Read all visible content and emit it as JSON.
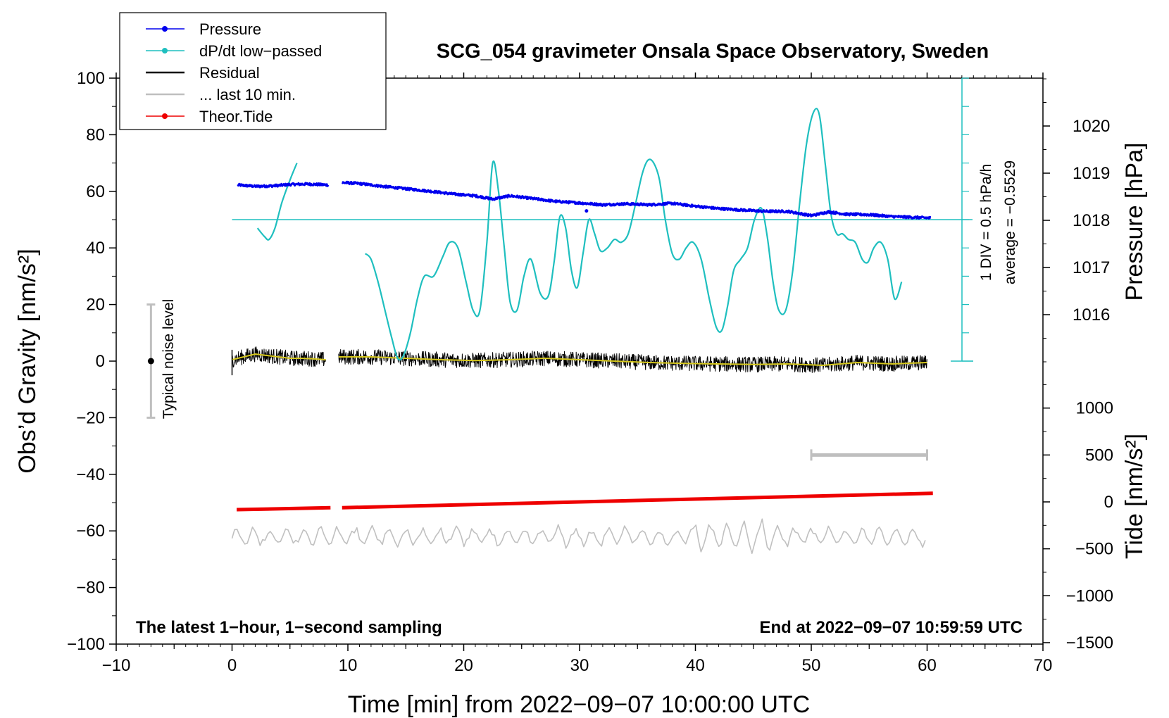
{
  "chart_data": {
    "type": "line",
    "title": "SCG_054 gravimeter Onsala Space Observatory, Sweden",
    "xlabel": "Time [min] from 2022−09−07 10:00:00 UTC",
    "ylabel": "Obs’d Gravity [nm/s²]",
    "ylabel_right_top": "Pressure [hPa]",
    "ylabel_right_bottom": "Tide [nm/s²]",
    "xlim": [
      -10,
      70
    ],
    "ylim": [
      -100,
      100
    ],
    "x_ticks": [
      -10,
      0,
      10,
      20,
      30,
      40,
      50,
      60,
      70
    ],
    "x_tick_labels": [
      "−10",
      "0",
      "10",
      "20",
      "30",
      "40",
      "50",
      "60",
      "70"
    ],
    "y_ticks": [
      -100,
      -80,
      -60,
      -40,
      -20,
      0,
      20,
      40,
      60,
      80,
      100
    ],
    "y_tick_labels": [
      "−100",
      "−80",
      "−60",
      "−40",
      "−20",
      "0",
      "20",
      "40",
      "60",
      "80",
      "100"
    ],
    "pressure_axis": {
      "range_hpa": [
        1015,
        1021
      ],
      "ticks": [
        1016,
        1017,
        1018,
        1019,
        1020
      ],
      "tick_labels": [
        "1016",
        "1017",
        "1018",
        "1019",
        "1020"
      ]
    },
    "tide_axis": {
      "range": [
        -1500,
        1500
      ],
      "ticks": [
        -1500,
        -1000,
        -500,
        0,
        500,
        1000
      ],
      "tick_labels": [
        "−1500",
        "−1000",
        "−500",
        "0",
        "500",
        "1000"
      ]
    },
    "legend": [
      {
        "label": "Pressure",
        "color": "#0000ee",
        "marker": true
      },
      {
        "label": "dP/dt low−passed",
        "color": "#1fbfbf",
        "marker": true
      },
      {
        "label": "Residual",
        "color": "#000000",
        "marker": false
      },
      {
        "label": "... last 10 min.",
        "color": "#bfbfbf",
        "marker": false
      },
      {
        "label": "Theor.Tide",
        "color": "#ee0000",
        "marker": true
      }
    ],
    "series": [
      {
        "name": "Pressure",
        "unit": "hPa",
        "color": "#0000ee",
        "segments": [
          {
            "x": [
              0.5,
              2,
              3.5,
              5,
              6.5,
              8.3
            ],
            "y": [
              1018.75,
              1018.72,
              1018.73,
              1018.76,
              1018.77,
              1018.75
            ]
          },
          {
            "x": [
              9.5,
              11,
              13,
              15,
              17,
              19,
              21,
              22.5,
              24,
              26,
              28,
              30,
              32,
              34,
              36,
              38,
              40,
              42,
              44,
              46,
              48,
              50,
              51.5,
              53,
              55,
              57,
              60.3
            ],
            "y": [
              1018.8,
              1018.78,
              1018.72,
              1018.67,
              1018.62,
              1018.56,
              1018.52,
              1018.45,
              1018.52,
              1018.46,
              1018.4,
              1018.37,
              1018.33,
              1018.35,
              1018.33,
              1018.36,
              1018.3,
              1018.25,
              1018.22,
              1018.19,
              1018.19,
              1018.1,
              1018.18,
              1018.13,
              1018.12,
              1018.08,
              1018.05
            ]
          }
        ]
      },
      {
        "name": "dP/dt low−passed",
        "unit": "gravity-axis units",
        "color": "#1fbfbf",
        "baseline": 50,
        "segments": [
          {
            "x": [
              2.2,
              2.8,
              3.2,
              3.7,
              4.3,
              5.0,
              5.6
            ],
            "y": [
              47,
              44,
              43,
              47,
              56,
              64,
              70
            ]
          },
          {
            "x": [
              11.5,
              12.0,
              12.6,
              13.2,
              13.8,
              14.3,
              14.8,
              15.4,
              16.0,
              16.6,
              17.4,
              18.2,
              18.8,
              19.5,
              20.2,
              20.8,
              21.4,
              22.0,
              22.5,
              23.0,
              23.5,
              24.0,
              24.6,
              25.2,
              25.8,
              26.6,
              27.3,
              27.8,
              28.3,
              28.8,
              29.3,
              29.8,
              30.3,
              30.8,
              31.3,
              31.8,
              32.4,
              33.0,
              33.6,
              34.2,
              34.8,
              35.4,
              35.9,
              36.4,
              36.9,
              37.4,
              38.0,
              38.6,
              39.2,
              39.8,
              40.5,
              41.2,
              41.8,
              42.3,
              42.8,
              43.3,
              43.9,
              44.5,
              45.1,
              45.7,
              46.2,
              46.7,
              47.2,
              47.8,
              48.4,
              49.0,
              49.6,
              50.2,
              50.7,
              51.2,
              51.7,
              52.2,
              52.7,
              53.2,
              53.8,
              54.4,
              54.9,
              55.4,
              56.0,
              56.6,
              57.2,
              57.8
            ],
            "y": [
              38,
              36,
              28,
              18,
              8,
              1,
              2,
              10,
              22,
              30,
              30,
              37,
              42,
              40,
              28,
              18,
              18,
              42,
              70,
              60,
              40,
              21,
              18,
              30,
              36,
              24,
              23,
              35,
              51,
              47,
              32,
              26,
              38,
              50,
              45,
              39,
              40,
              43,
              42,
              45,
              55,
              66,
              71,
              70,
              64,
              50,
              38,
              36,
              40,
              42,
              36,
              22,
              12,
              11,
              20,
              32,
              36,
              40,
              50,
              54,
              44,
              28,
              18,
              18,
              32,
              56,
              77,
              88,
              87,
              70,
              52,
              45,
              45,
              43,
              42,
              36,
              35,
              40,
              42,
              36,
              22,
              28
            ]
          }
        ]
      },
      {
        "name": "Residual",
        "unit": "nm/s²",
        "color": "#000000",
        "smoothed_color": "#d6c81c",
        "segments": [
          {
            "x": [
              0,
              1,
              2,
              3,
              4,
              5,
              6,
              7,
              8.1
            ],
            "y": [
              0.5,
              1.5,
              2.5,
              2.0,
              1.5,
              1.0,
              1.0,
              0.8,
              0.5
            ]
          },
          {
            "x": [
              9.2,
              12,
              15,
              18,
              21,
              24,
              27,
              30,
              33,
              36,
              39,
              42,
              45,
              48,
              51,
              54,
              57,
              60
            ],
            "y": [
              1.5,
              1.5,
              1.0,
              0.5,
              0.2,
              0.5,
              1.0,
              0.5,
              0.0,
              -0.5,
              -0.8,
              -1.0,
              -1.2,
              -1.0,
              -1.5,
              -0.5,
              -1.0,
              -0.5
            ]
          }
        ]
      },
      {
        "name": "... last 10 min.",
        "color": "#bfbfbf",
        "x": [
          50,
          60
        ],
        "tide_axis_y": 500
      },
      {
        "name": "Theor.Tide",
        "unit": "nm/s²",
        "color": "#ee0000",
        "segments": [
          {
            "x": [
              0.4,
              8.5
            ],
            "y": [
              -52.5,
              -51.8
            ]
          },
          {
            "x": [
              9.5,
              60.5
            ],
            "y": [
              -51.8,
              -46.7
            ]
          }
        ]
      },
      {
        "name": "Residual (offset copy)",
        "color": "#c0c0c0",
        "offset": -62,
        "x": [
          0,
          60
        ]
      }
    ],
    "noise_bar": {
      "x": -7,
      "y_range": [
        -20,
        20
      ],
      "center": 0,
      "label": "Typical noise level"
    },
    "annotations": {
      "bottom_left": "The latest 1−hour, 1−second sampling",
      "bottom_right": "End at 2022−09−07 10:59:59 UTC",
      "dpdt_scale": "1 DIV = 0.5 hPa/h",
      "dpdt_average": "average = −0.5529"
    }
  }
}
